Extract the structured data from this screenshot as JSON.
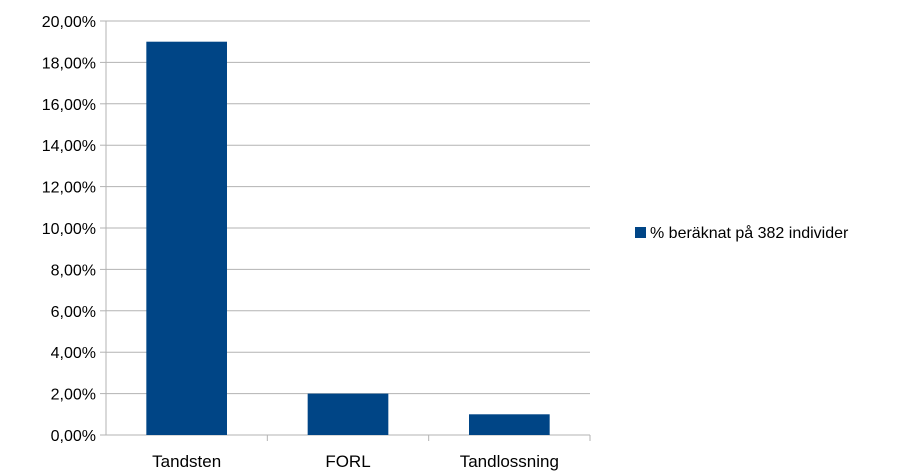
{
  "chart_data": {
    "type": "bar",
    "categories": [
      "Tandsten",
      "FORL",
      "Tandlossning"
    ],
    "series": [
      {
        "name": "% beräknat på 382 individer",
        "values": [
          19.0,
          2.0,
          1.0
        ],
        "color": "#004586"
      }
    ],
    "yticks": [
      "0,00%",
      "2,00%",
      "4,00%",
      "6,00%",
      "8,00%",
      "10,00%",
      "12,00%",
      "14,00%",
      "16,00%",
      "18,00%",
      "20,00%"
    ],
    "ylim": [
      0,
      20
    ],
    "grid": true,
    "legend_position": "right",
    "title": "",
    "xlabel": "",
    "ylabel": ""
  }
}
